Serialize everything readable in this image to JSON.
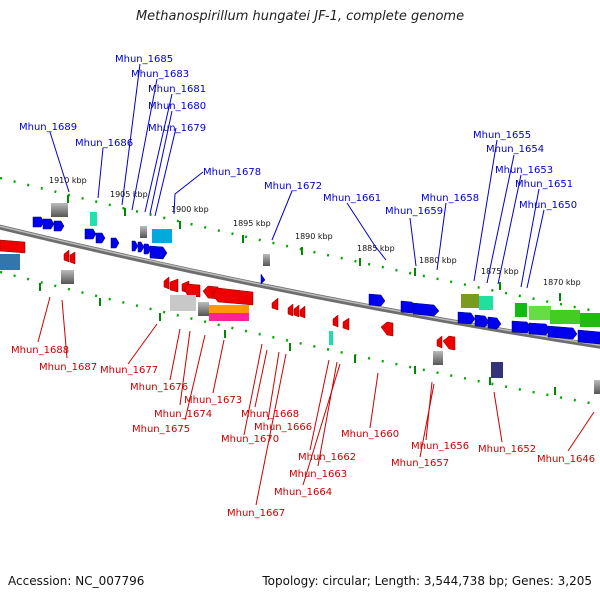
{
  "title": "Methanospirillum hungatei JF-1, complete genome",
  "footer": {
    "accession": "Accession: NC_007796",
    "topology": "Topology: circular; Length: 3,544,738 bp; Genes: 3,205"
  },
  "colors": {
    "forward_gene": "#0000ee",
    "reverse_gene": "#ee0000",
    "forward_label": "#0000cc",
    "reverse_label": "#cc0000",
    "backbone": "#888888",
    "tick": "#009900"
  },
  "kbp_labels": [
    "1910 kbp",
    "1905 kbp",
    "1900 kbp",
    "1895 kbp",
    "1890 kbp",
    "1885 kbp",
    "1880 kbp",
    "1875 kbp",
    "1870 kbp"
  ],
  "top_labels": [
    {
      "text": "Mhun_1685"
    },
    {
      "text": "Mhun_1683"
    },
    {
      "text": "Mhun_1681"
    },
    {
      "text": "Mhun_1680"
    },
    {
      "text": "Mhun_1679"
    },
    {
      "text": "Mhun_1689"
    },
    {
      "text": "Mhun_1686"
    },
    {
      "text": "Mhun_1678"
    },
    {
      "text": "Mhun_1672"
    },
    {
      "text": "Mhun_1661"
    },
    {
      "text": "Mhun_1659"
    },
    {
      "text": "Mhun_1658"
    },
    {
      "text": "Mhun_1655"
    },
    {
      "text": "Mhun_1654"
    },
    {
      "text": "Mhun_1653"
    },
    {
      "text": "Mhun_1651"
    },
    {
      "text": "Mhun_1650"
    }
  ],
  "bottom_labels": [
    {
      "text": "Mhun_1688"
    },
    {
      "text": "Mhun_1687"
    },
    {
      "text": "Mhun_1677"
    },
    {
      "text": "Mhun_1676"
    },
    {
      "text": "Mhun_1674"
    },
    {
      "text": "Mhun_1675"
    },
    {
      "text": "Mhun_1673"
    },
    {
      "text": "Mhun_1668"
    },
    {
      "text": "Mhun_1666"
    },
    {
      "text": "Mhun_1670"
    },
    {
      "text": "Mhun_1667"
    },
    {
      "text": "Mhun_1662"
    },
    {
      "text": "Mhun_1663"
    },
    {
      "text": "Mhun_1664"
    },
    {
      "text": "Mhun_1660"
    },
    {
      "text": "Mhun_1656"
    },
    {
      "text": "Mhun_1657"
    },
    {
      "text": "Mhun_1652"
    },
    {
      "text": "Mhun_1646"
    }
  ]
}
